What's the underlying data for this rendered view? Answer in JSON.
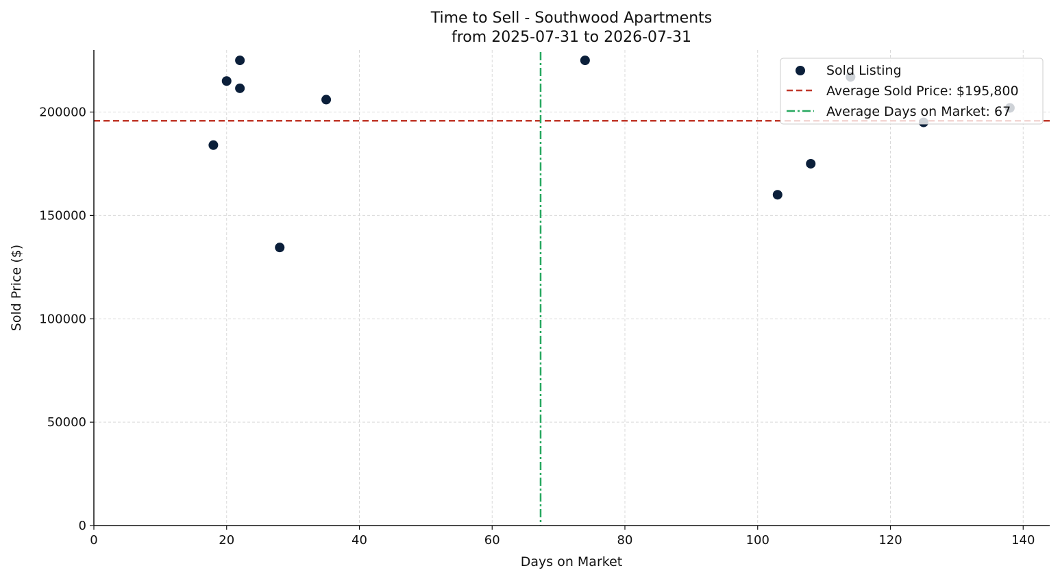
{
  "chart_data": {
    "type": "scatter",
    "title": "Time to Sell - Southwood Apartments",
    "subtitle": "from 2025-07-31 to 2026-07-31",
    "xlabel": "Days on Market",
    "ylabel": "Sold Price ($)",
    "xlim": [
      0,
      144
    ],
    "ylim": [
      0,
      230000
    ],
    "xticks": [
      0,
      20,
      40,
      60,
      80,
      100,
      120,
      140
    ],
    "yticks": [
      0,
      50000,
      100000,
      150000,
      200000
    ],
    "grid": true,
    "legend_position": "top-right",
    "series": [
      {
        "name": "Sold Listing",
        "color": "#0b1f3a",
        "points": [
          {
            "x": 18,
            "y": 184000
          },
          {
            "x": 20,
            "y": 215000
          },
          {
            "x": 22,
            "y": 225000
          },
          {
            "x": 22,
            "y": 211500
          },
          {
            "x": 28,
            "y": 134500
          },
          {
            "x": 35,
            "y": 206000
          },
          {
            "x": 74,
            "y": 225000
          },
          {
            "x": 103,
            "y": 160000
          },
          {
            "x": 108,
            "y": 175000
          },
          {
            "x": 114,
            "y": 217000
          },
          {
            "x": 125,
            "y": 195000
          },
          {
            "x": 138,
            "y": 202000
          }
        ]
      }
    ],
    "reference_lines": [
      {
        "name": "Average Sold Price: $195,800",
        "orientation": "horizontal",
        "value": 195800,
        "color": "#c0392b",
        "style": "dashed"
      },
      {
        "name": "Average Days on Market: 67",
        "orientation": "vertical",
        "value": 67.3,
        "color": "#27a860",
        "style": "dashdot"
      }
    ]
  }
}
